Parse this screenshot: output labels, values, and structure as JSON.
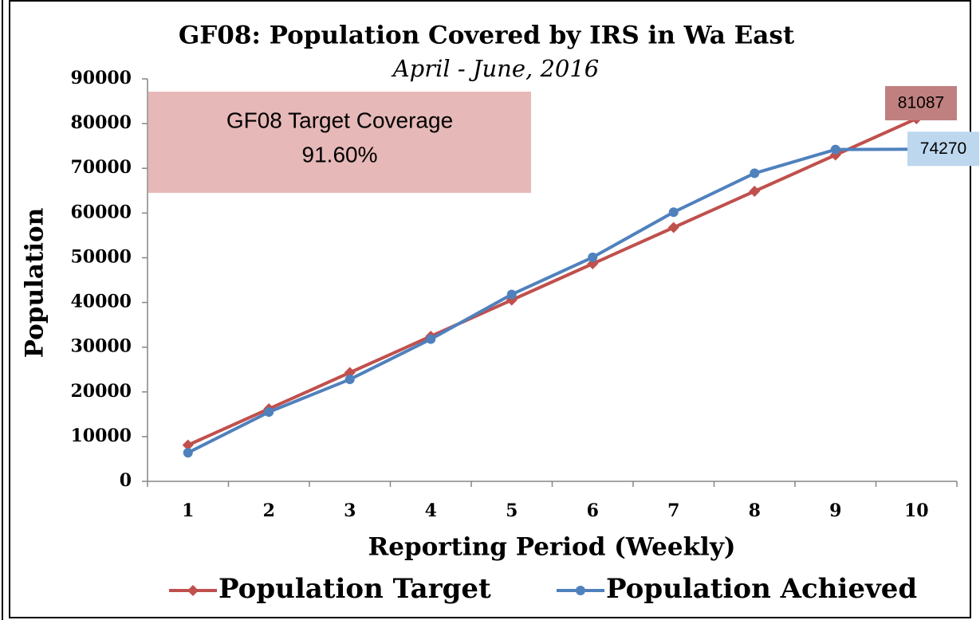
{
  "chart_data": {
    "type": "line",
    "title": "GF08: Population Covered by IRS in Wa East",
    "subtitle": "April - June, 2016",
    "x_label": "Reporting Period (Weekly)",
    "y_label": "Population",
    "categories": [
      "1",
      "2",
      "3",
      "4",
      "5",
      "6",
      "7",
      "8",
      "9",
      "10"
    ],
    "series": [
      {
        "name": "Population Target",
        "color": "#c0504d",
        "marker": "diamond",
        "label_fill": "#c0807f",
        "values": [
          8109,
          16217,
          24326,
          32435,
          40544,
          48652,
          56761,
          64870,
          72978,
          81087
        ]
      },
      {
        "name": "Population Achieved",
        "color": "#4f81bd",
        "marker": "circle",
        "label_fill": "#bdd7ee",
        "values": [
          6400,
          15500,
          22800,
          31800,
          41800,
          50100,
          60200,
          68900,
          74200,
          74270
        ]
      }
    ],
    "ylim": [
      0,
      90000
    ],
    "yticks": [
      0,
      10000,
      20000,
      30000,
      40000,
      50000,
      60000,
      70000,
      80000,
      90000
    ],
    "grid": false,
    "legend": "bottom",
    "annotation": {
      "lines": [
        "GF08 Target Coverage",
        "91.60%"
      ],
      "fill": "#e6b8b7"
    }
  }
}
